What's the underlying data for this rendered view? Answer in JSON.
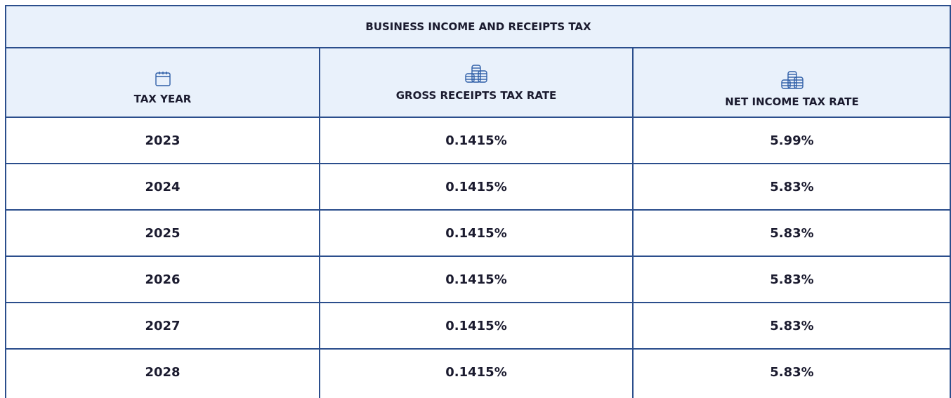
{
  "table": {
    "title": "BUSINESS INCOME AND RECEIPTS TAX",
    "columns": [
      "TAX YEAR",
      "GROSS RECEIPTS TAX RATE",
      "NET INCOME TAX RATE"
    ],
    "rows": [
      [
        "2023",
        "0.1415%",
        "5.99%"
      ],
      [
        "2024",
        "0.1415%",
        "5.83%"
      ],
      [
        "2025",
        "0.1415%",
        "5.83%"
      ],
      [
        "2026",
        "0.1415%",
        "5.83%"
      ],
      [
        "2027",
        "0.1415%",
        "5.83%"
      ],
      [
        "2028",
        "0.1415%",
        "5.83%"
      ]
    ]
  }
}
